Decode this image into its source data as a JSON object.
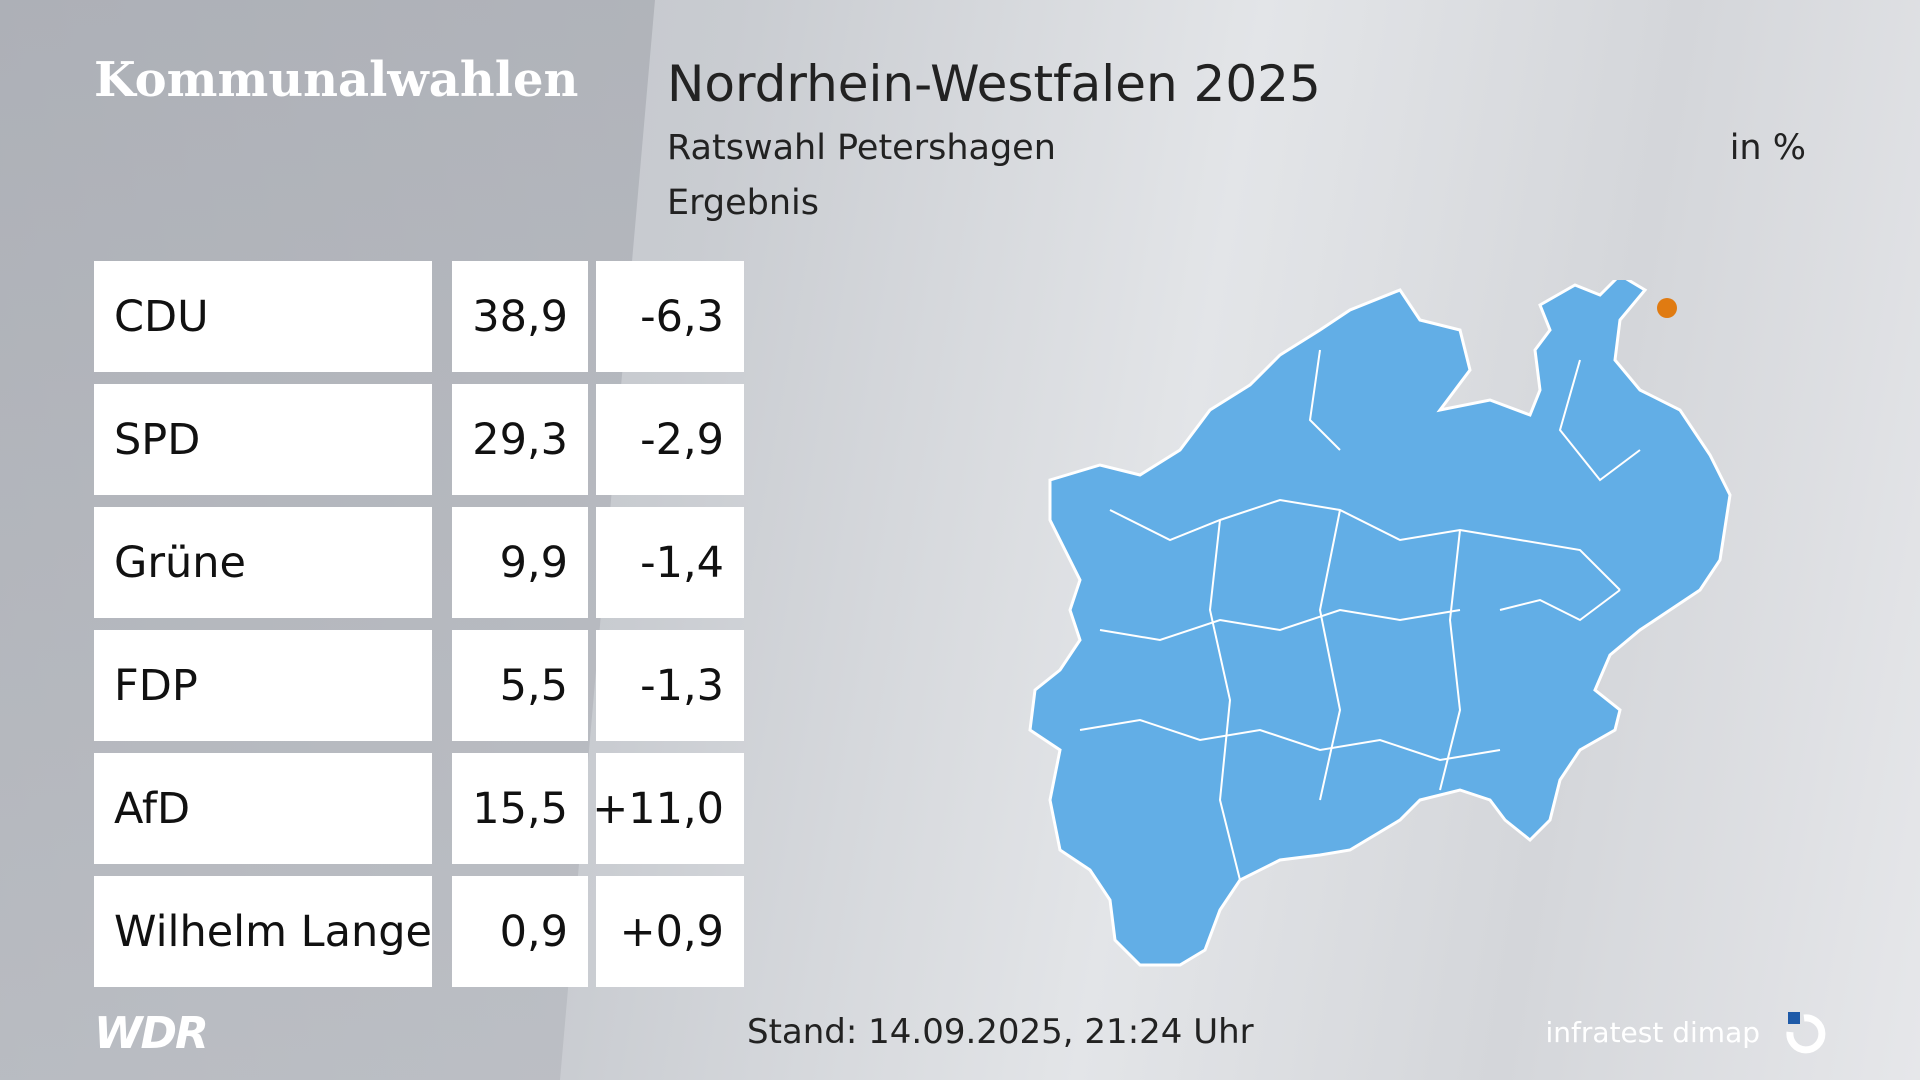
{
  "header": {
    "series": "Kommunalwahlen",
    "title": "Nordrhein-Westfalen 2025",
    "subtitle": "Ratswahl Petershagen",
    "unit": "in %",
    "result_label": "Ergebnis"
  },
  "results": [
    {
      "party": "CDU",
      "value": "38,9",
      "change": "-6,3"
    },
    {
      "party": "SPD",
      "value": "29,3",
      "change": "-2,9"
    },
    {
      "party": "Grüne",
      "value": "9,9",
      "change": "-1,4"
    },
    {
      "party": "FDP",
      "value": "5,5",
      "change": "-1,3"
    },
    {
      "party": "AfD",
      "value": "15,5",
      "change": "+11,0"
    },
    {
      "party": "Wilhelm Lange",
      "value": "0,9",
      "change": "+0,9"
    }
  ],
  "footer": {
    "stand": "Stand: 14.09.2025, 21:24 Uhr",
    "broadcaster_logo": "WDR",
    "institute": "infratest dimap"
  },
  "map": {
    "region_color": "#62aee6",
    "marker_color": "#e07b12",
    "marker_location": "Petershagen"
  }
}
